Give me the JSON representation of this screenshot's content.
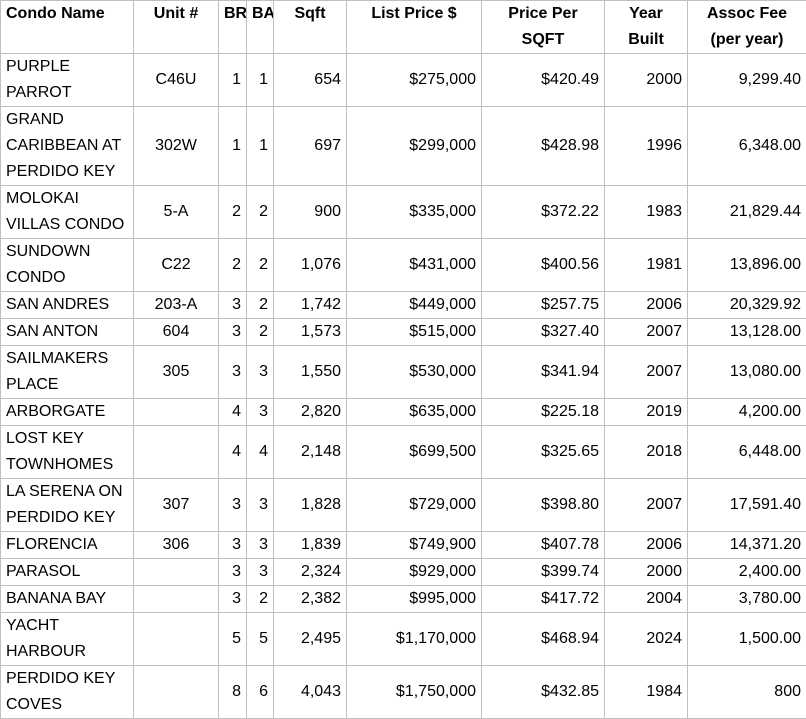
{
  "table": {
    "columns": [
      {
        "key": "name",
        "label_lines": [
          "Condo Name"
        ]
      },
      {
        "key": "unit",
        "label_lines": [
          "Unit #"
        ]
      },
      {
        "key": "br",
        "label_lines": [
          "BR"
        ]
      },
      {
        "key": "ba",
        "label_lines": [
          "BA"
        ]
      },
      {
        "key": "sqft",
        "label_lines": [
          "Sqft"
        ]
      },
      {
        "key": "list_price",
        "label_lines": [
          "List Price $"
        ]
      },
      {
        "key": "price_per_sqft",
        "label_lines": [
          "Price Per",
          "SQFT"
        ]
      },
      {
        "key": "year_built",
        "label_lines": [
          "Year",
          "Built"
        ]
      },
      {
        "key": "assoc_fee",
        "label_lines": [
          "Assoc Fee",
          "(per year)"
        ]
      }
    ],
    "rows": [
      {
        "name": "PURPLE\nPARROT",
        "unit": "C46U",
        "br": "1",
        "ba": "1",
        "sqft": "654",
        "list_price": "$275,000",
        "price_per_sqft": "$420.49",
        "year_built": "2000",
        "assoc_fee": "9,299.40"
      },
      {
        "name": "GRAND\nCARIBBEAN AT\nPERDIDO KEY",
        "unit": "302W",
        "br": "1",
        "ba": "1",
        "sqft": "697",
        "list_price": "$299,000",
        "price_per_sqft": "$428.98",
        "year_built": "1996",
        "assoc_fee": "6,348.00"
      },
      {
        "name": "MOLOKAI\nVILLAS CONDO",
        "unit": "5-A",
        "br": "2",
        "ba": "2",
        "sqft": "900",
        "list_price": "$335,000",
        "price_per_sqft": "$372.22",
        "year_built": "1983",
        "assoc_fee": "21,829.44"
      },
      {
        "name": "SUNDOWN\nCONDO",
        "unit": "C22",
        "br": "2",
        "ba": "2",
        "sqft": "1,076",
        "list_price": "$431,000",
        "price_per_sqft": "$400.56",
        "year_built": "1981",
        "assoc_fee": "13,896.00"
      },
      {
        "name": "SAN ANDRES",
        "unit": "203-A",
        "br": "3",
        "ba": "2",
        "sqft": "1,742",
        "list_price": "$449,000",
        "price_per_sqft": "$257.75",
        "year_built": "2006",
        "assoc_fee": "20,329.92"
      },
      {
        "name": "SAN ANTON",
        "unit": "604",
        "br": "3",
        "ba": "2",
        "sqft": "1,573",
        "list_price": "$515,000",
        "price_per_sqft": "$327.40",
        "year_built": "2007",
        "assoc_fee": "13,128.00"
      },
      {
        "name": "SAILMAKERS\nPLACE",
        "unit": "305",
        "br": "3",
        "ba": "3",
        "sqft": "1,550",
        "list_price": "$530,000",
        "price_per_sqft": "$341.94",
        "year_built": "2007",
        "assoc_fee": "13,080.00"
      },
      {
        "name": "ARBORGATE",
        "unit": "",
        "br": "4",
        "ba": "3",
        "sqft": "2,820",
        "list_price": "$635,000",
        "price_per_sqft": "$225.18",
        "year_built": "2019",
        "assoc_fee": "4,200.00"
      },
      {
        "name": "LOST KEY\nTOWNHOMES",
        "unit": "",
        "br": "4",
        "ba": "4",
        "sqft": "2,148",
        "list_price": "$699,500",
        "price_per_sqft": "$325.65",
        "year_built": "2018",
        "assoc_fee": "6,448.00"
      },
      {
        "name": "LA SERENA ON\nPERDIDO KEY",
        "unit": "307",
        "br": "3",
        "ba": "3",
        "sqft": "1,828",
        "list_price": "$729,000",
        "price_per_sqft": "$398.80",
        "year_built": "2007",
        "assoc_fee": "17,591.40"
      },
      {
        "name": "FLORENCIA",
        "unit": "306",
        "br": "3",
        "ba": "3",
        "sqft": "1,839",
        "list_price": "$749,900",
        "price_per_sqft": "$407.78",
        "year_built": "2006",
        "assoc_fee": "14,371.20"
      },
      {
        "name": "PARASOL",
        "unit": "",
        "br": "3",
        "ba": "3",
        "sqft": "2,324",
        "list_price": "$929,000",
        "price_per_sqft": "$399.74",
        "year_built": "2000",
        "assoc_fee": "2,400.00"
      },
      {
        "name": "BANANA BAY",
        "unit": "",
        "br": "3",
        "ba": "2",
        "sqft": "2,382",
        "list_price": "$995,000",
        "price_per_sqft": "$417.72",
        "year_built": "2004",
        "assoc_fee": "3,780.00"
      },
      {
        "name": "YACHT\nHARBOUR",
        "unit": "",
        "br": "5",
        "ba": "5",
        "sqft": "2,495",
        "list_price": "$1,170,000",
        "price_per_sqft": "$468.94",
        "year_built": "2024",
        "assoc_fee": "1,500.00"
      },
      {
        "name": "PERDIDO KEY\nCOVES",
        "unit": "",
        "br": "8",
        "ba": "6",
        "sqft": "4,043",
        "list_price": "$1,750,000",
        "price_per_sqft": "$432.85",
        "year_built": "1984",
        "assoc_fee": "800"
      }
    ],
    "grid_color": "#bfbfbf",
    "text_color": "#000000"
  }
}
